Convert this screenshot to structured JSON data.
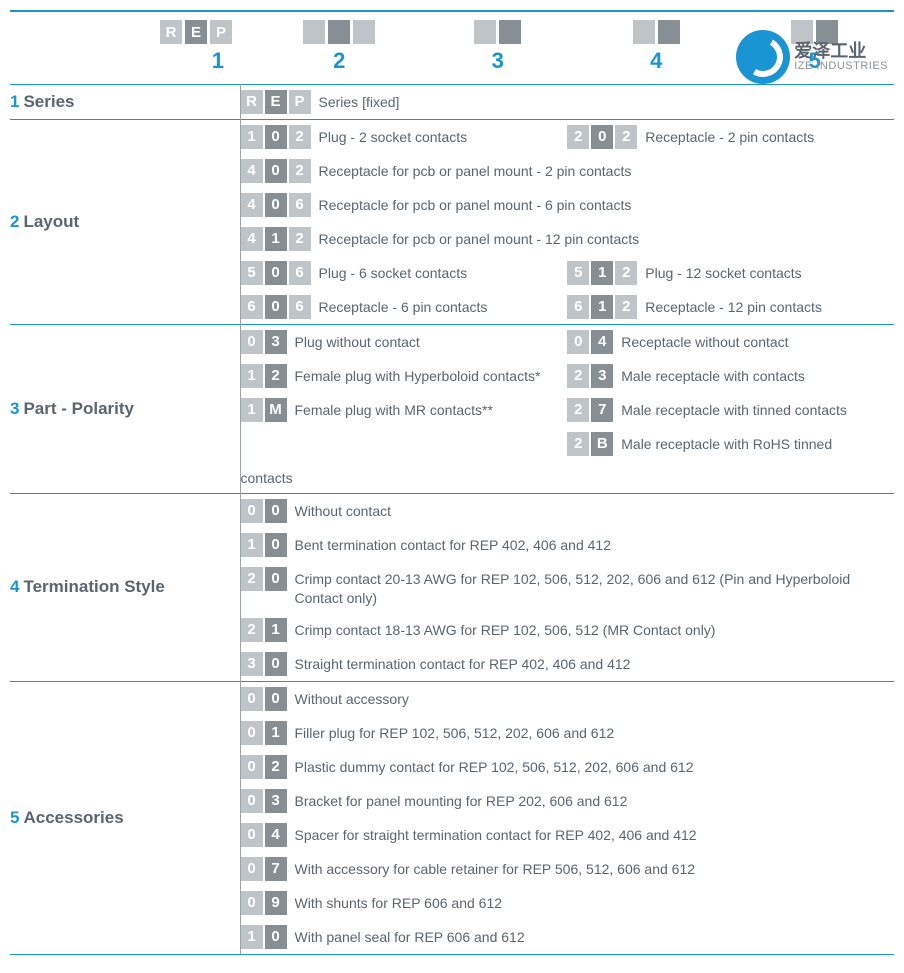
{
  "colors": {
    "accent": "#1a94d2",
    "box_light": "#bfc4c8",
    "box_dark": "#878f95",
    "text": "#5a6570",
    "divider": "#9aa2aa"
  },
  "logo": {
    "cn": "爱泽工业",
    "en": "IZE INDUSTRIES"
  },
  "header_positions": [
    {
      "boxes": [
        "R",
        "E",
        "P"
      ],
      "pattern": [
        "light",
        "dark",
        "light"
      ]
    },
    {
      "boxes": [
        "",
        "",
        ""
      ],
      "pattern": [
        "light",
        "dark",
        "light"
      ]
    },
    {
      "boxes": [
        "",
        ""
      ],
      "pattern": [
        "light",
        "dark"
      ]
    },
    {
      "boxes": [
        "",
        ""
      ],
      "pattern": [
        "light",
        "dark"
      ]
    },
    {
      "boxes": [
        "",
        ""
      ],
      "pattern": [
        "light",
        "dark"
      ]
    }
  ],
  "position_numbers": [
    "1",
    "2",
    "3",
    "4",
    "5"
  ],
  "sections": [
    {
      "num": "1",
      "label": "Series",
      "items": [
        {
          "w": "full",
          "code": [
            "R",
            "E",
            "P"
          ],
          "pattern": [
            "light",
            "dark",
            "light"
          ],
          "text": "Series [fixed]"
        }
      ]
    },
    {
      "num": "2",
      "label": "Layout",
      "items": [
        {
          "w": "half",
          "code": [
            "1",
            "0",
            "2"
          ],
          "pattern": [
            "light",
            "dark",
            "light"
          ],
          "text": "Plug - 2 socket contacts"
        },
        {
          "w": "half",
          "code": [
            "2",
            "0",
            "2"
          ],
          "pattern": [
            "light",
            "dark",
            "light"
          ],
          "text": "Receptacle - 2 pin contacts"
        },
        {
          "w": "full",
          "code": [
            "4",
            "0",
            "2"
          ],
          "pattern": [
            "light",
            "dark",
            "light"
          ],
          "text": "Receptacle for pcb or panel mount - 2 pin contacts"
        },
        {
          "w": "full",
          "code": [
            "4",
            "0",
            "6"
          ],
          "pattern": [
            "light",
            "dark",
            "light"
          ],
          "text": "Receptacle for pcb or panel mount - 6 pin contacts"
        },
        {
          "w": "full",
          "code": [
            "4",
            "1",
            "2"
          ],
          "pattern": [
            "light",
            "dark",
            "light"
          ],
          "text": "Receptacle for pcb or panel mount - 12 pin contacts"
        },
        {
          "w": "half",
          "code": [
            "5",
            "0",
            "6"
          ],
          "pattern": [
            "light",
            "dark",
            "light"
          ],
          "text": "Plug - 6 socket contacts"
        },
        {
          "w": "half",
          "code": [
            "5",
            "1",
            "2"
          ],
          "pattern": [
            "light",
            "dark",
            "light"
          ],
          "text": "Plug - 12 socket contacts"
        },
        {
          "w": "half",
          "code": [
            "6",
            "0",
            "6"
          ],
          "pattern": [
            "light",
            "dark",
            "light"
          ],
          "text": "Receptacle - 6 pin contacts"
        },
        {
          "w": "half",
          "code": [
            "6",
            "1",
            "2"
          ],
          "pattern": [
            "light",
            "dark",
            "light"
          ],
          "text": "Receptacle - 12 pin contacts"
        }
      ]
    },
    {
      "num": "3",
      "label": "Part - Polarity",
      "items": [
        {
          "w": "half",
          "code": [
            "0",
            "3"
          ],
          "pattern": [
            "light",
            "dark"
          ],
          "text": "Plug without contact"
        },
        {
          "w": "half",
          "code": [
            "0",
            "4"
          ],
          "pattern": [
            "light",
            "dark"
          ],
          "text": "Receptacle without contact"
        },
        {
          "w": "half",
          "code": [
            "1",
            "2"
          ],
          "pattern": [
            "light",
            "dark"
          ],
          "text": "Female plug with Hyperboloid contacts*"
        },
        {
          "w": "half",
          "code": [
            "2",
            "3"
          ],
          "pattern": [
            "light",
            "dark"
          ],
          "text": "Male receptacle with contacts"
        },
        {
          "w": "half",
          "code": [
            "1",
            "M"
          ],
          "pattern": [
            "light",
            "dark"
          ],
          "text": "Female plug with MR contacts**"
        },
        {
          "w": "half",
          "code": [
            "2",
            "7"
          ],
          "pattern": [
            "light",
            "dark"
          ],
          "text": "Male receptacle with tinned contacts"
        },
        {
          "w": "half",
          "code": [],
          "pattern": [],
          "text": ""
        },
        {
          "w": "half",
          "code": [
            "2",
            "B"
          ],
          "pattern": [
            "light",
            "dark"
          ],
          "text": "Male receptacle with RoHS tinned"
        },
        {
          "w": "full",
          "code": [],
          "pattern": [],
          "text": "contacts"
        }
      ]
    },
    {
      "num": "4",
      "label": "Termination Style",
      "items": [
        {
          "w": "full",
          "code": [
            "0",
            "0"
          ],
          "pattern": [
            "light",
            "dark"
          ],
          "text": "Without contact"
        },
        {
          "w": "full",
          "code": [
            "1",
            "0"
          ],
          "pattern": [
            "light",
            "dark"
          ],
          "text": "Bent termination contact for REP 402, 406 and 412"
        },
        {
          "w": "full",
          "code": [
            "2",
            "0"
          ],
          "pattern": [
            "light",
            "dark"
          ],
          "text": "Crimp contact 20-13 AWG for REP 102, 506, 512, 202, 606 and 612 (Pin and Hyperboloid Contact only)"
        },
        {
          "w": "full",
          "code": [
            "2",
            "1"
          ],
          "pattern": [
            "light",
            "dark"
          ],
          "text": "Crimp contact 18-13 AWG for REP 102, 506, 512 (MR Contact only)"
        },
        {
          "w": "full",
          "code": [
            "3",
            "0"
          ],
          "pattern": [
            "light",
            "dark"
          ],
          "text": "Straight termination contact for REP 402, 406 and 412"
        }
      ]
    },
    {
      "num": "5",
      "label": "Accessories",
      "items": [
        {
          "w": "full",
          "code": [
            "0",
            "0"
          ],
          "pattern": [
            "light",
            "dark"
          ],
          "text": "Without accessory"
        },
        {
          "w": "full",
          "code": [
            "0",
            "1"
          ],
          "pattern": [
            "light",
            "dark"
          ],
          "text": "Filler plug for REP 102, 506, 512, 202, 606 and 612"
        },
        {
          "w": "full",
          "code": [
            "0",
            "2"
          ],
          "pattern": [
            "light",
            "dark"
          ],
          "text": "Plastic dummy contact for REP 102, 506, 512, 202, 606 and 612"
        },
        {
          "w": "full",
          "code": [
            "0",
            "3"
          ],
          "pattern": [
            "light",
            "dark"
          ],
          "text": "Bracket for panel mounting for REP 202, 606 and 612"
        },
        {
          "w": "full",
          "code": [
            "0",
            "4"
          ],
          "pattern": [
            "light",
            "dark"
          ],
          "text": "Spacer for straight termination contact for REP 402, 406 and 412"
        },
        {
          "w": "full",
          "code": [
            "0",
            "7"
          ],
          "pattern": [
            "light",
            "dark"
          ],
          "text": "With accessory for cable retainer for REP 506, 512, 606 and 612"
        },
        {
          "w": "full",
          "code": [
            "0",
            "9"
          ],
          "pattern": [
            "light",
            "dark"
          ],
          "text": "With shunts for REP 606 and 612"
        },
        {
          "w": "full",
          "code": [
            "1",
            "0"
          ],
          "pattern": [
            "light",
            "dark"
          ],
          "text": "With panel seal for REP 606 and 612"
        }
      ]
    }
  ]
}
